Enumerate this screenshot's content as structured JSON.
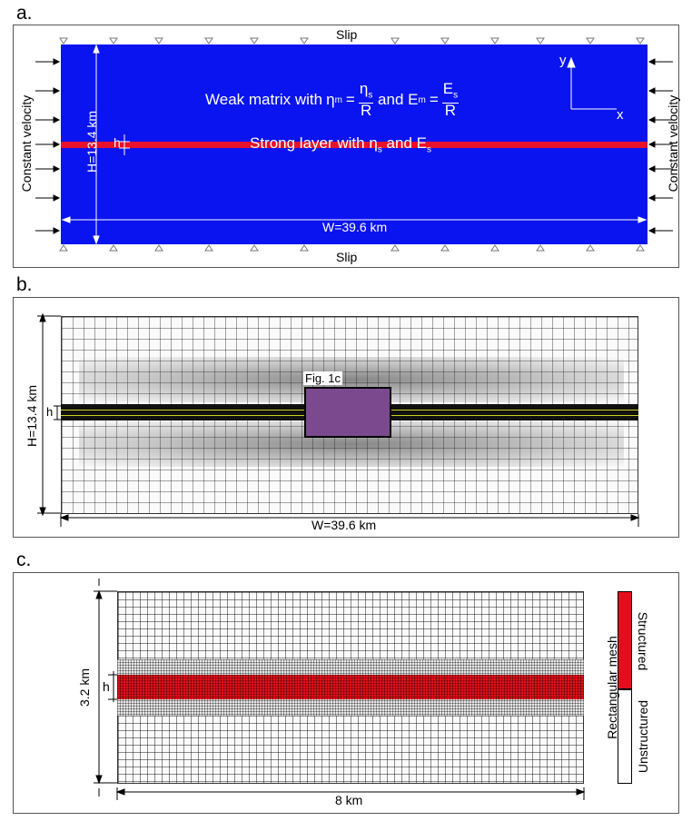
{
  "panel_a": {
    "label": "a.",
    "top_bc": "Slip",
    "bottom_bc": "Slip",
    "left_bc": "Constant velocity",
    "right_bc": "Constant velocity",
    "matrix_prefix": "Weak matrix with ",
    "matrix_eta": "η",
    "matrix_eta_sub": "m",
    "matrix_eta_num": "η",
    "matrix_eta_num_sub": "s",
    "matrix_eta_den": "R",
    "matrix_and": " and ",
    "matrix_E": "E",
    "matrix_E_sub": "m",
    "matrix_E_num": "E",
    "matrix_E_num_sub": "s",
    "matrix_E_den": "R",
    "layer_prefix": "Strong layer with ",
    "layer_eta": "η",
    "layer_eta_sub": "s",
    "layer_and": " and ",
    "layer_E": "E",
    "layer_E_sub": "s",
    "height_label": "H=13.4 km",
    "width_label": "W=39.6 km",
    "h_label": "h",
    "axis_y": "y",
    "axis_x": "x",
    "colors": {
      "matrix": "#0a14f0",
      "layer": "#e8102a"
    }
  },
  "panel_b": {
    "label": "b.",
    "height_label": "H=13.4 km",
    "width_label": "W=39.6 km",
    "h_label": "h",
    "inset_label": "Fig. 1c",
    "colors": {
      "inset": "#7b4a8e",
      "layer_line": "#c8d020"
    }
  },
  "panel_c": {
    "label": "c.",
    "height_label": "3.2 km",
    "width_label": "8 km",
    "h_label": "h",
    "legend_title": "Rectangular mesh",
    "legend_structured": "Structured",
    "legend_unstructured": "Unstructured",
    "colors": {
      "structured": "#e0101a",
      "unstructured": "#ffffff"
    }
  }
}
